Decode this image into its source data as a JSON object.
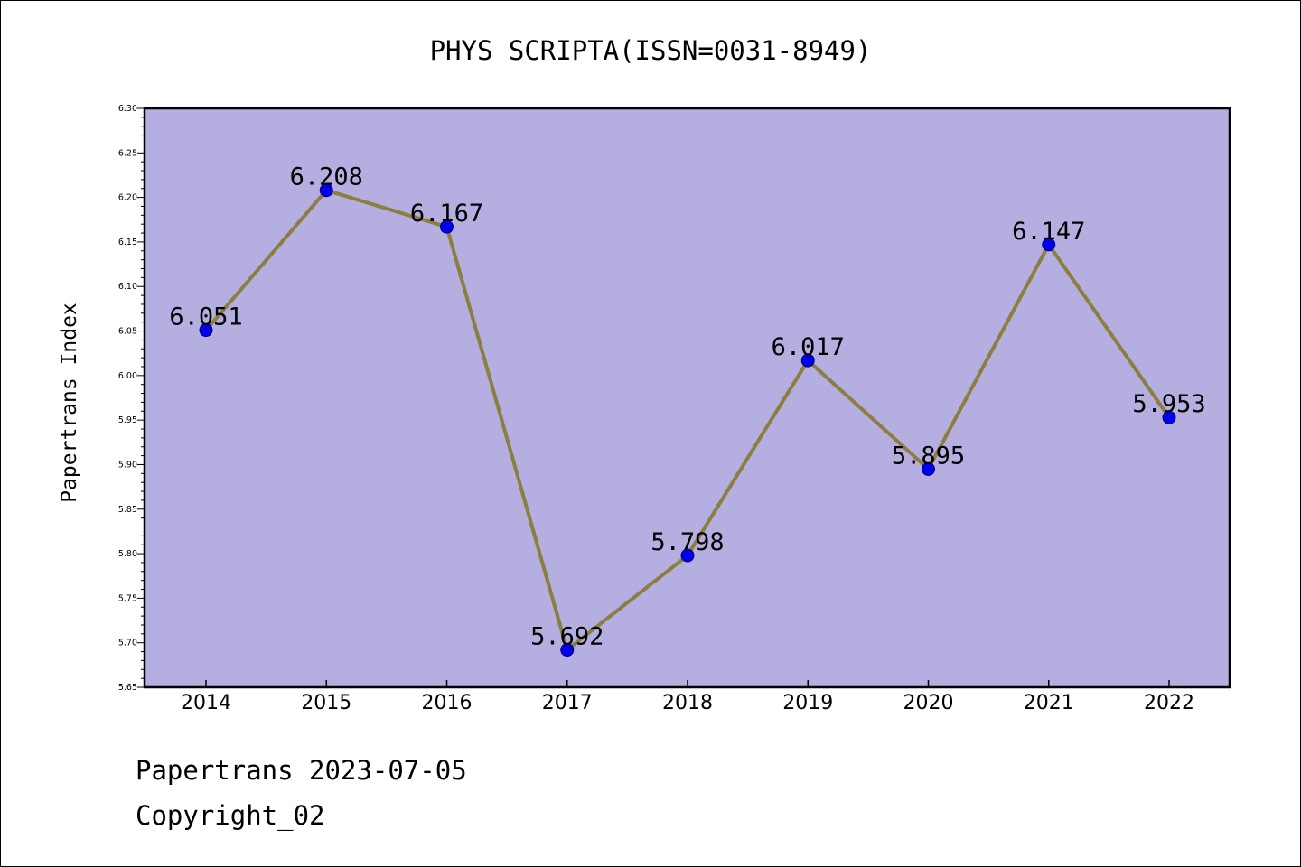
{
  "chart_data": {
    "type": "line",
    "title": "PHYS SCRIPTA(ISSN=0031-8949)",
    "xlabel": "",
    "ylabel": "Papertrans Index",
    "categories": [
      "2014",
      "2015",
      "2016",
      "2017",
      "2018",
      "2019",
      "2020",
      "2021",
      "2022"
    ],
    "series": [
      {
        "values": [
          6.051,
          6.208,
          6.167,
          5.692,
          5.798,
          6.017,
          5.895,
          6.147,
          5.953
        ],
        "data_labels": [
          "6.051",
          "6.208",
          "6.167",
          "5.692",
          "5.798",
          "6.017",
          "5.895",
          "6.147",
          "5.953"
        ]
      }
    ],
    "ylim": [
      5.65,
      6.3
    ],
    "yticks": [
      "5.65",
      "5.70",
      "5.75",
      "5.80",
      "5.85",
      "5.90",
      "5.95",
      "6.00",
      "6.05",
      "6.10",
      "6.15",
      "6.20",
      "6.25",
      "6.30"
    ],
    "grid": false,
    "colors": {
      "plot_background": "#b5aee1",
      "line": "#8b7e3e",
      "marker": "#0000ee"
    }
  },
  "footer": {
    "line1": "Papertrans 2023-07-05",
    "line2": "Copyright_02"
  }
}
